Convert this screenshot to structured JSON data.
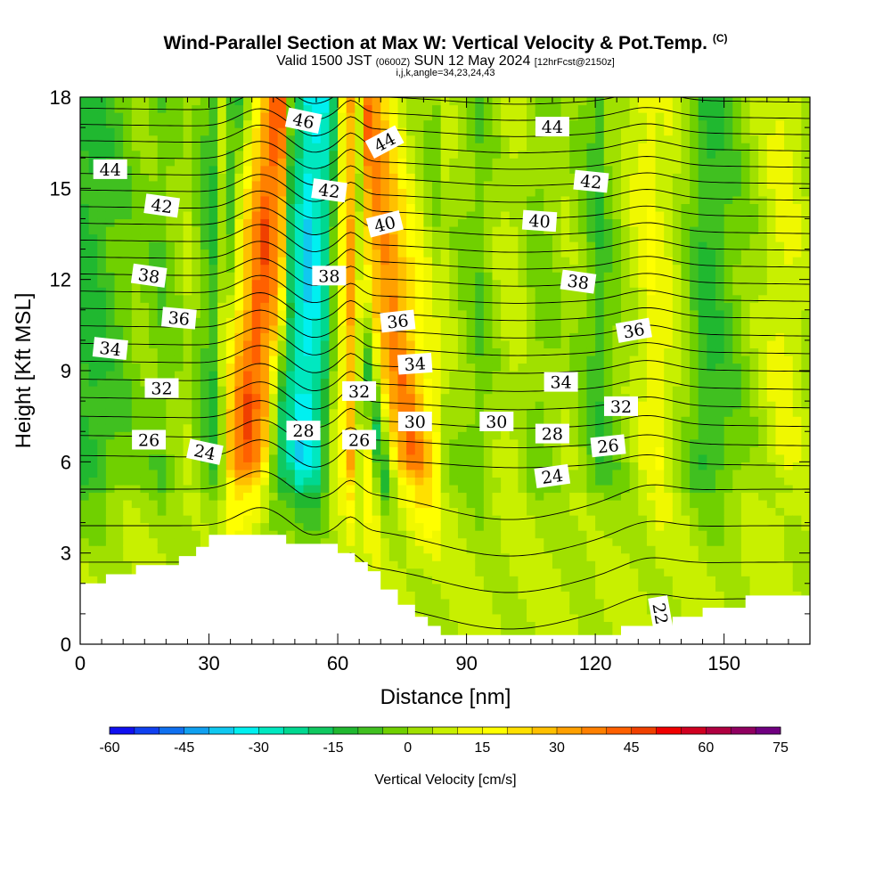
{
  "chart_data": {
    "type": "heatmap",
    "title": "Wind-Parallel Section at Max W: Vertical Velocity & Pot.Temp.",
    "title_mark": "(C)",
    "subtitle_main": "Valid 1500 JST",
    "subtitle_utc": "(0600Z)",
    "subtitle_date": "SUN 12 May 2024",
    "subtitle_fcst": "[12hrFcst@2150z]",
    "subtitle2": "i,j,k,angle=34,23,24,43",
    "xlabel": "Distance [nm]",
    "ylabel": "Height [Kft MSL]",
    "xlim": [
      0,
      170
    ],
    "ylim": [
      0,
      18
    ],
    "x_ticks": [
      "0",
      "30",
      "60",
      "90",
      "120",
      "150"
    ],
    "x_tick_values": [
      0,
      30,
      60,
      90,
      120,
      150
    ],
    "y_ticks": [
      "0",
      "3",
      "6",
      "9",
      "12",
      "15",
      "18"
    ],
    "y_tick_values": [
      0,
      3,
      6,
      9,
      12,
      15,
      18
    ],
    "colorbar": {
      "title": "Vertical Velocity [cm/s]",
      "ticks": [
        "-60",
        "-45",
        "-30",
        "-15",
        "0",
        "15",
        "30",
        "45",
        "60",
        "75"
      ],
      "tick_values": [
        -60,
        -45,
        -30,
        -15,
        0,
        15,
        30,
        45,
        60,
        75
      ],
      "step": 5,
      "colors": [
        "#1010f0",
        "#1040f0",
        "#1070f0",
        "#10a0f0",
        "#10c8f0",
        "#00f0f0",
        "#00e8c0",
        "#00d890",
        "#10c860",
        "#20b830",
        "#40c020",
        "#70d000",
        "#a0e000",
        "#c8f000",
        "#f0f800",
        "#ffff00",
        "#ffe000",
        "#ffc000",
        "#ffa000",
        "#ff8000",
        "#ff6000",
        "#f04000",
        "#f00000",
        "#d00020",
        "#b00040",
        "#900060",
        "#700080"
      ]
    },
    "w_columns": [
      {
        "x": 3,
        "w": -12
      },
      {
        "x": 8,
        "w": -6
      },
      {
        "x": 14,
        "w": 0
      },
      {
        "x": 19,
        "w": -4
      },
      {
        "x": 25,
        "w": 4
      },
      {
        "x": 31,
        "w": -10
      },
      {
        "x": 36,
        "w": 25
      },
      {
        "x": 40,
        "w": 45
      },
      {
        "x": 44,
        "w": 30
      },
      {
        "x": 48,
        "w": -15
      },
      {
        "x": 52,
        "w": -35
      },
      {
        "x": 56,
        "w": -25
      },
      {
        "x": 60,
        "w": 10
      },
      {
        "x": 63,
        "w": 30
      },
      {
        "x": 67,
        "w": -15
      },
      {
        "x": 71,
        "w": 25
      },
      {
        "x": 75,
        "w": 40
      },
      {
        "x": 80,
        "w": 20
      },
      {
        "x": 86,
        "w": 4
      },
      {
        "x": 93,
        "w": -4
      },
      {
        "x": 100,
        "w": 8
      },
      {
        "x": 107,
        "w": -2
      },
      {
        "x": 114,
        "w": 4
      },
      {
        "x": 121,
        "w": -8
      },
      {
        "x": 128,
        "w": 4
      },
      {
        "x": 134,
        "w": 15
      },
      {
        "x": 140,
        "w": 4
      },
      {
        "x": 146,
        "w": -12
      },
      {
        "x": 152,
        "w": -4
      },
      {
        "x": 158,
        "w": 4
      },
      {
        "x": 164,
        "w": 12
      },
      {
        "x": 170,
        "w": 4
      }
    ],
    "low_level_w": 6,
    "terrain": [
      [
        0,
        2.0
      ],
      [
        6,
        2.0
      ],
      [
        6,
        2.3
      ],
      [
        13,
        2.3
      ],
      [
        13,
        2.6
      ],
      [
        23,
        2.6
      ],
      [
        23,
        2.9
      ],
      [
        27,
        2.9
      ],
      [
        27,
        3.2
      ],
      [
        30,
        3.2
      ],
      [
        30,
        3.6
      ],
      [
        48,
        3.6
      ],
      [
        48,
        3.3
      ],
      [
        60,
        3.3
      ],
      [
        60,
        3.0
      ],
      [
        64,
        3.0
      ],
      [
        64,
        2.7
      ],
      [
        67,
        2.7
      ],
      [
        67,
        2.4
      ],
      [
        70,
        2.4
      ],
      [
        70,
        1.8
      ],
      [
        74,
        1.8
      ],
      [
        74,
        1.3
      ],
      [
        78,
        1.3
      ],
      [
        78,
        0.9
      ],
      [
        81,
        0.9
      ],
      [
        81,
        0.6
      ],
      [
        84,
        0.6
      ],
      [
        84,
        0.3
      ],
      [
        126,
        0.3
      ],
      [
        126,
        0.6
      ],
      [
        138,
        0.6
      ],
      [
        138,
        0.9
      ],
      [
        145,
        0.9
      ],
      [
        145,
        1.2
      ],
      [
        155,
        1.2
      ],
      [
        155,
        1.6
      ],
      [
        170,
        1.6
      ]
    ],
    "theta_contours": {
      "levels": [
        22,
        23,
        24,
        25,
        26,
        27,
        28,
        29,
        30,
        31,
        32,
        33,
        34,
        35,
        36,
        37,
        38,
        39,
        40,
        41,
        42,
        43,
        44,
        45,
        46,
        47
      ],
      "labels": [
        {
          "text": "44",
          "x": 7,
          "y": 15.6,
          "angle": 0
        },
        {
          "text": "42",
          "x": 19,
          "y": 14.4,
          "angle": 8
        },
        {
          "text": "38",
          "x": 16,
          "y": 12.1,
          "angle": 8
        },
        {
          "text": "36",
          "x": 23,
          "y": 10.7,
          "angle": 5
        },
        {
          "text": "34",
          "x": 7,
          "y": 9.7,
          "angle": 6
        },
        {
          "text": "32",
          "x": 19,
          "y": 8.4,
          "angle": 0
        },
        {
          "text": "26",
          "x": 16,
          "y": 6.7,
          "angle": 0
        },
        {
          "text": "24",
          "x": 29,
          "y": 6.3,
          "angle": 12
        },
        {
          "text": "46",
          "x": 52,
          "y": 17.2,
          "angle": 12
        },
        {
          "text": "42",
          "x": 58,
          "y": 14.9,
          "angle": 8
        },
        {
          "text": "38",
          "x": 58,
          "y": 12.1,
          "angle": 0
        },
        {
          "text": "28",
          "x": 52,
          "y": 7.0,
          "angle": 0
        },
        {
          "text": "32",
          "x": 65,
          "y": 8.3,
          "angle": 0
        },
        {
          "text": "26",
          "x": 65,
          "y": 6.7,
          "angle": 0
        },
        {
          "text": "44",
          "x": 71,
          "y": 16.5,
          "angle": -28
        },
        {
          "text": "40",
          "x": 71,
          "y": 13.8,
          "angle": -14
        },
        {
          "text": "36",
          "x": 74,
          "y": 10.6,
          "angle": -6
        },
        {
          "text": "34",
          "x": 78,
          "y": 9.2,
          "angle": -4
        },
        {
          "text": "30",
          "x": 78,
          "y": 7.3,
          "angle": 0
        },
        {
          "text": "30",
          "x": 97,
          "y": 7.3,
          "angle": 0
        },
        {
          "text": "44",
          "x": 110,
          "y": 17.0,
          "angle": 0
        },
        {
          "text": "42",
          "x": 119,
          "y": 15.2,
          "angle": 6
        },
        {
          "text": "40",
          "x": 107,
          "y": 13.9,
          "angle": 4
        },
        {
          "text": "38",
          "x": 116,
          "y": 11.9,
          "angle": 8
        },
        {
          "text": "34",
          "x": 112,
          "y": 8.6,
          "angle": 0
        },
        {
          "text": "28",
          "x": 110,
          "y": 6.9,
          "angle": 0
        },
        {
          "text": "24",
          "x": 110,
          "y": 5.5,
          "angle": -8
        },
        {
          "text": "36",
          "x": 129,
          "y": 10.3,
          "angle": -10
        },
        {
          "text": "32",
          "x": 126,
          "y": 7.8,
          "angle": 0
        },
        {
          "text": "26",
          "x": 123,
          "y": 6.5,
          "angle": -6
        },
        {
          "text": "22",
          "x": 135,
          "y": 1.0,
          "angle": 80
        }
      ]
    }
  }
}
